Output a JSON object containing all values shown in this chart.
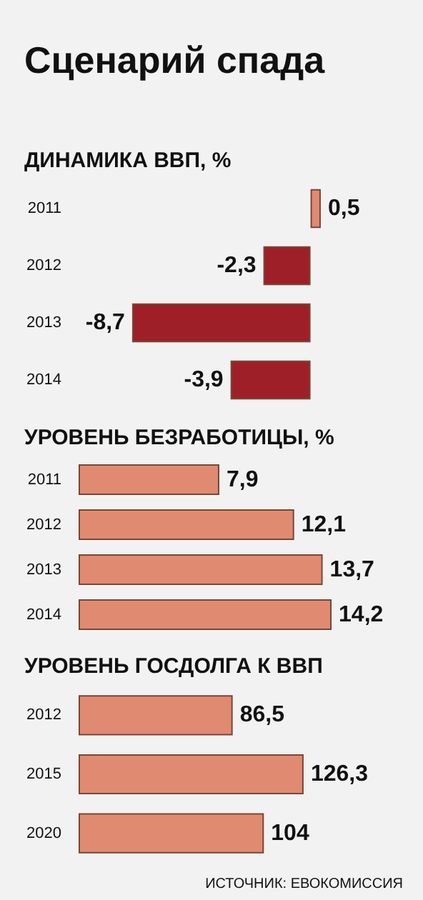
{
  "chart_data": [
    {
      "type": "bar",
      "title": "Сценарий спада",
      "subtitle": "ДИНАМИКА ВВП, %",
      "orientation": "horizontal",
      "categories": [
        "2011",
        "2012",
        "2013",
        "2014"
      ],
      "values": [
        0.5,
        -2.3,
        -8.7,
        -3.9
      ],
      "colors": [
        "#e08a72",
        "#9e1f27",
        "#9e1f27",
        "#9e1f27"
      ],
      "value_labels": [
        "0,5",
        "-2,3",
        "-8,7",
        "-3,9"
      ]
    },
    {
      "type": "bar",
      "title": "УРОВЕНЬ БЕЗРАБОТИЦЫ, %",
      "orientation": "horizontal",
      "categories": [
        "2011",
        "2012",
        "2013",
        "2014"
      ],
      "values": [
        7.9,
        12.1,
        13.7,
        14.2
      ],
      "color": "#e08a72",
      "value_labels": [
        "7,9",
        "12,1",
        "13,7",
        "14,2"
      ]
    },
    {
      "type": "bar",
      "title": "УРОВЕНЬ ГОСДОЛГА К ВВП",
      "orientation": "horizontal",
      "categories": [
        "2012",
        "2015",
        "2020"
      ],
      "values": [
        86.5,
        126.3,
        104
      ],
      "color": "#e08a72",
      "value_labels": [
        "86,5",
        "126,3",
        "104"
      ],
      "annotations": [
        "ИСТОЧНИК: ЕВОКОМИССИЯ"
      ]
    }
  ]
}
